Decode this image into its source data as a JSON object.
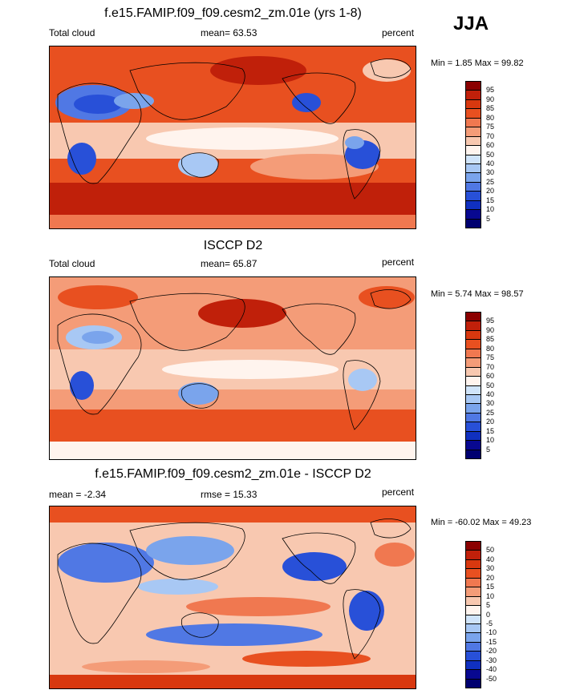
{
  "season": "JJA",
  "panels": [
    {
      "id": "model",
      "title": "f.e15.FAMIP.f09_f09.cesm2_zm.01e (yrs 1-8)",
      "left_label": "Total cloud",
      "center_label": "mean=  63.53",
      "right_label": "percent",
      "minmax": "Min =   1.85 Max =  99.82",
      "colorbar": {
        "levels": [
          "95",
          "90",
          "85",
          "80",
          "75",
          "70",
          "60",
          "50",
          "40",
          "30",
          "25",
          "20",
          "15",
          "10",
          "5"
        ],
        "colors": [
          "#8b0000",
          "#c0200a",
          "#d8380f",
          "#e85020",
          "#f07850",
          "#f49c78",
          "#f8c8b0",
          "#fff4ee",
          "#d0e4fa",
          "#a8c8f4",
          "#7aa4ec",
          "#5078e4",
          "#2850d8",
          "#1030c0",
          "#080890",
          "#000070"
        ]
      }
    },
    {
      "id": "obs",
      "title": "ISCCP D2",
      "left_label": "Total cloud",
      "center_label": "mean=  65.87",
      "right_label": "percent",
      "minmax": "Min =   5.74 Max =  98.57",
      "colorbar": {
        "levels": [
          "95",
          "90",
          "85",
          "80",
          "75",
          "70",
          "60",
          "50",
          "40",
          "30",
          "25",
          "20",
          "15",
          "10",
          "5"
        ],
        "colors": [
          "#8b0000",
          "#c0200a",
          "#d8380f",
          "#e85020",
          "#f07850",
          "#f49c78",
          "#f8c8b0",
          "#fff4ee",
          "#d0e4fa",
          "#a8c8f4",
          "#7aa4ec",
          "#5078e4",
          "#2850d8",
          "#1030c0",
          "#080890",
          "#000070"
        ]
      }
    },
    {
      "id": "diff",
      "title": "f.e15.FAMIP.f09_f09.cesm2_zm.01e - ISCCP D2",
      "left_label": "mean =  -2.34",
      "center_label": "rmse =  15.33",
      "right_label": "percent",
      "minmax": "Min = -60.02 Max =  49.23",
      "colorbar": {
        "levels": [
          "50",
          "40",
          "30",
          "20",
          "15",
          "10",
          "5",
          "0",
          "-5",
          "-10",
          "-15",
          "-20",
          "-30",
          "-40",
          "-50"
        ],
        "colors": [
          "#8b0000",
          "#c0200a",
          "#d8380f",
          "#e85020",
          "#f07850",
          "#f49c78",
          "#f8c8b0",
          "#fff4ee",
          "#d0e4fa",
          "#a8c8f4",
          "#7aa4ec",
          "#5078e4",
          "#2850d8",
          "#1030c0",
          "#080890",
          "#000070"
        ]
      }
    }
  ]
}
